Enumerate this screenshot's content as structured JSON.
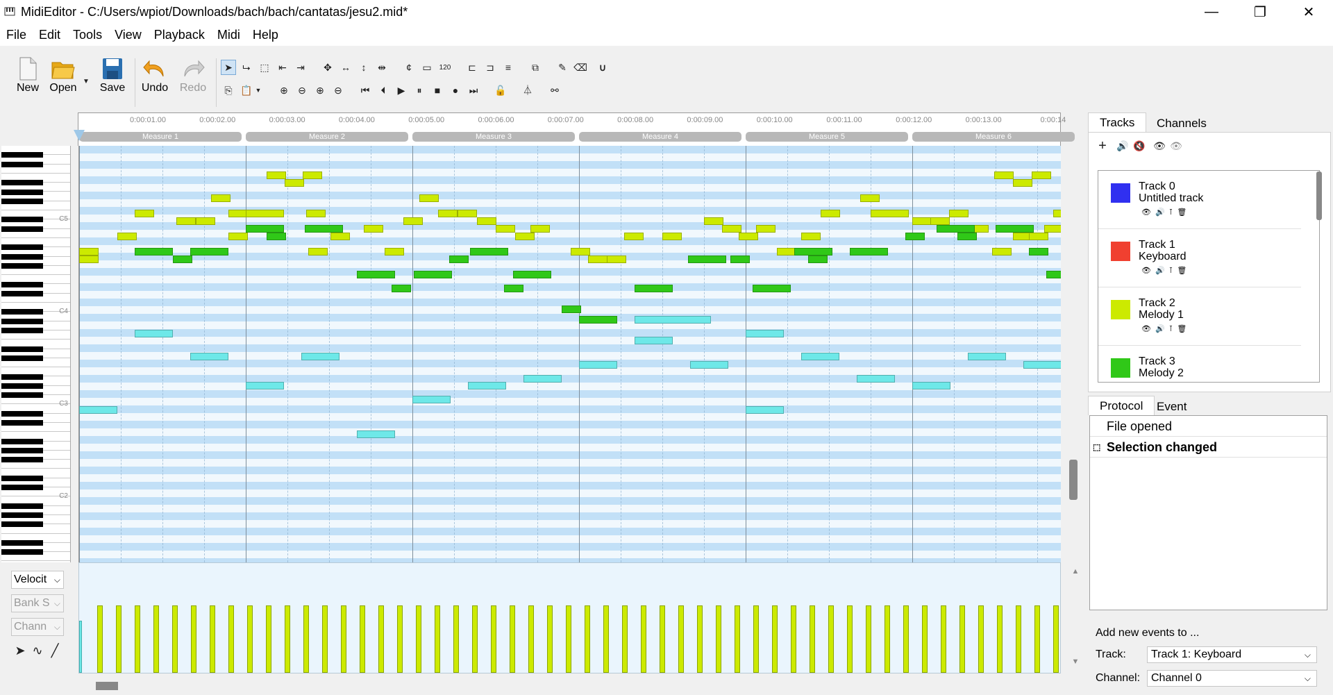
{
  "window": {
    "title": "MidiEditor - C:/Users/wpiot/Downloads/bach/bach/cantatas/jesu2.mid*",
    "minimize": "—",
    "maximize": "❐",
    "close": "✕"
  },
  "menu": [
    "File",
    "Edit",
    "Tools",
    "View",
    "Playback",
    "Midi",
    "Help"
  ],
  "toolbar": {
    "new_label": "New",
    "open_label": "Open",
    "save_label": "Save",
    "undo_label": "Undo",
    "redo_label": "Redo",
    "tempo_glyph": "120"
  },
  "ruler": {
    "time_labels": [
      "0:00:01.00",
      "0:00:02.00",
      "0:00:03.00",
      "0:00:04.00",
      "0:00:05.00",
      "0:00:06.00",
      "0:00:07.00",
      "0:00:08.00",
      "0:00:09.00",
      "0:00:10.00",
      "0:00:11.00",
      "0:00:12.00",
      "0:00:13.00",
      "0:00:14"
    ],
    "measures": [
      "Measure 1",
      "Measure 2",
      "Measure 3",
      "Measure 4",
      "Measure 5",
      "Measure 6"
    ]
  },
  "piano": {
    "octave_labels": [
      "C5",
      "C4",
      "C3",
      "C2"
    ]
  },
  "controls": {
    "velocity": "Velocit",
    "bank": "Bank S",
    "channel": "Chann"
  },
  "colors": {
    "track0": "#3030f0",
    "track1": "#f04030",
    "track2": "#ccea00",
    "track3": "#30c818",
    "track_lowvoice": "#6ee8e8"
  },
  "tabs": {
    "tracks": "Tracks",
    "channels": "Channels",
    "protocol": "Protocol",
    "event": "Event"
  },
  "tracks": [
    {
      "name": "Track 0",
      "sub": "Untitled track",
      "color": "#3030f0"
    },
    {
      "name": "Track 1",
      "sub": "Keyboard",
      "color": "#f04030"
    },
    {
      "name": "Track 2",
      "sub": "Melody 1",
      "color": "#ccea00"
    },
    {
      "name": "Track 3",
      "sub": "Melody 2",
      "color": "#30c818"
    }
  ],
  "protocol": [
    "File opened",
    "Selection changed"
  ],
  "add_events": {
    "label": "Add new events to ...",
    "track_label": "Track:",
    "track_value": "Track 1: Keyboard",
    "channel_label": "Channel:",
    "channel_value": "Channel 0"
  }
}
